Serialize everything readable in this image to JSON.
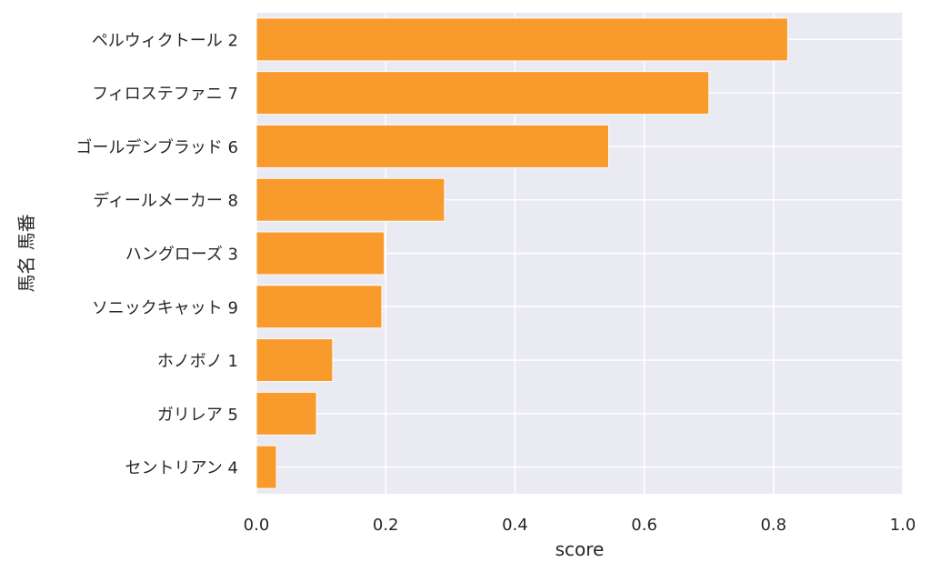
{
  "chart_data": {
    "type": "bar",
    "orientation": "horizontal",
    "categories": [
      "ペルウィクトール 2",
      "フィロステファニ 7",
      "ゴールデンブラッド 6",
      "ディールメーカー 8",
      "ハングローズ 3",
      "ソニックキャット 9",
      "ホノボノ 1",
      "ガリレア 5",
      "セントリアン 4"
    ],
    "values": [
      0.822,
      0.7,
      0.545,
      0.291,
      0.198,
      0.194,
      0.118,
      0.093,
      0.031
    ],
    "xlabel": "score",
    "ylabel": "馬名 馬番",
    "xlim": [
      0,
      1.0
    ],
    "xticks": [
      "0.0",
      "0.2",
      "0.4",
      "0.6",
      "0.8",
      "1.0"
    ],
    "grid": true,
    "colors": {
      "bar": "#f99a2c",
      "bar_edge": "#ffffff",
      "plot_background": "#eaeaf2",
      "grid": "#ffffff",
      "text": "#262626"
    }
  }
}
